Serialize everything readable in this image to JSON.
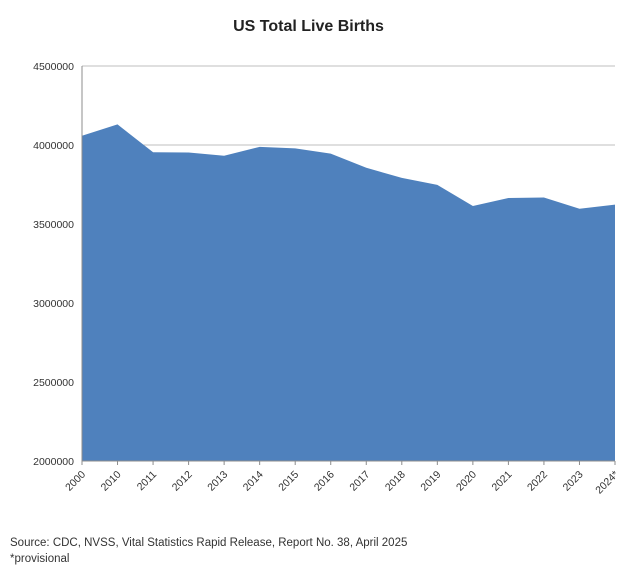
{
  "chart_data": {
    "type": "area",
    "title": "US Total Live Births",
    "categories": [
      "2000",
      "2010",
      "2011",
      "2012",
      "2013",
      "2014",
      "2015",
      "2016",
      "2017",
      "2018",
      "2019",
      "2020",
      "2021",
      "2022",
      "2023",
      "2024*"
    ],
    "series": [
      {
        "values": [
          4058814,
          4130665,
          3953590,
          3952841,
          3932181,
          3988076,
          3978497,
          3945875,
          3855500,
          3791712,
          3747540,
          3613647,
          3664292,
          3667758,
          3596017,
          3622673
        ]
      }
    ],
    "ylim": [
      2000000,
      4500000
    ],
    "yticks": [
      "2000000",
      "2500000",
      "3000000",
      "3500000",
      "4000000",
      "4500000"
    ],
    "grid": true,
    "color": "#4f81bd"
  },
  "footer": {
    "source": "Source: CDC, NVSS, Vital Statistics Rapid Release, Report No. 38,  April 2025",
    "note": "*provisional"
  }
}
